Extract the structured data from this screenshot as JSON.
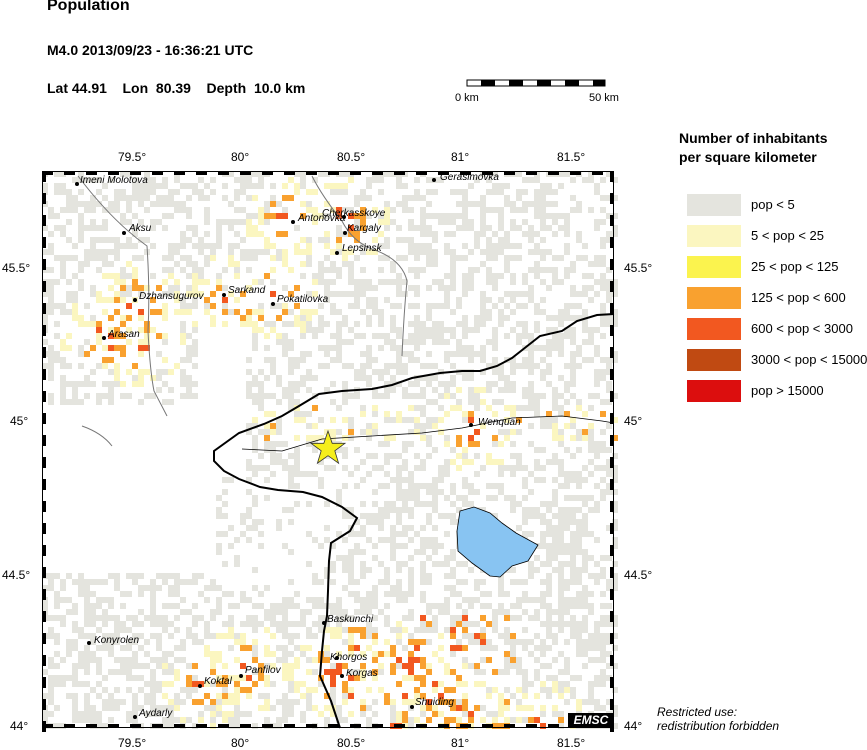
{
  "header": {
    "title": "Population",
    "event": "M4.0  2013/09/23 - 16:36:21 UTC",
    "location": "Lat 44.91    Lon  80.39    Depth  10.0 km"
  },
  "scale_bar": {
    "start_label": "0 km",
    "end_label": "50 km"
  },
  "legend": {
    "title_line1": "Number of inhabitants",
    "title_line2": "per square kilometer",
    "items": [
      {
        "label": "pop < 5",
        "color": "#e4e4de"
      },
      {
        "label": "5 < pop < 25",
        "color": "#fbf6c0"
      },
      {
        "label": "25 < pop < 125",
        "color": "#fbf34e"
      },
      {
        "label": "125 < pop < 600",
        "color": "#f9a12f"
      },
      {
        "label": "600 < pop < 3000",
        "color": "#f25820"
      },
      {
        "label": "3000 < pop < 15000",
        "color": "#c04a12"
      },
      {
        "label": "pop > 15000",
        "color": "#dc0e0e"
      }
    ]
  },
  "axes": {
    "lon_ticks": [
      "79.5°",
      "80°",
      "80.5°",
      "81°",
      "81.5°"
    ],
    "lat_ticks": [
      "45.5°",
      "45°",
      "44.5°",
      "44°"
    ]
  },
  "cities": [
    "Imeni Molotova",
    "Gerasimovka",
    "Aksu",
    "Antonovka",
    "Cherkasskoye",
    "Kargaly",
    "Lepsinsk",
    "Sarkand",
    "Dzhansugurov",
    "Pokatilovka",
    "Arasan",
    "Wenquan",
    "Baskunchi",
    "Konyrolen",
    "Khorgos",
    "Korgas",
    "Panfilov",
    "Koktal",
    "Shuiding",
    "Aydarly"
  ],
  "epicenter": {
    "lat": 44.91,
    "lon": 80.39
  },
  "brand": "EMSC",
  "notice": {
    "line1": "Restricted use:",
    "line2": "redistribution forbidden"
  },
  "colors": {
    "lake": "#88c4f2",
    "background": "#ffffff",
    "star": "#f5ee1c"
  }
}
